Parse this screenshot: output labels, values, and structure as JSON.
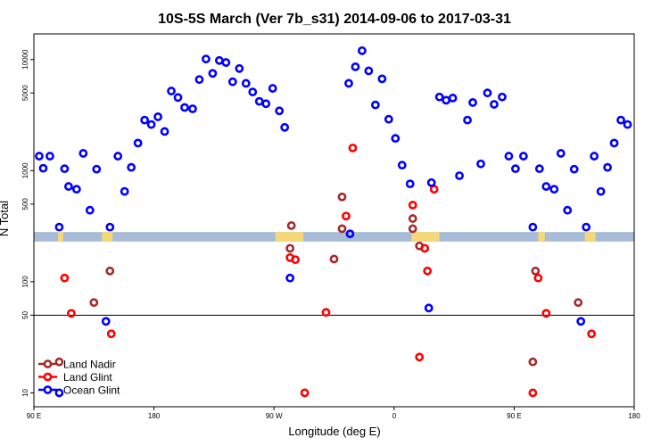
{
  "chart_data": {
    "type": "scatter",
    "title": "10S-5S March (Ver 7b_s31)   2014-09-06 to 2017-03-31",
    "xlabel": "Longitude (deg E)",
    "ylabel": "N Total",
    "x_scale": "linear",
    "y_scale": "log",
    "xlim": [
      90,
      540
    ],
    "ylim": [
      7.5,
      17000
    ],
    "x_ticks": [
      {
        "value": 90,
        "label": "90 E"
      },
      {
        "value": 180,
        "label": "180"
      },
      {
        "value": 270,
        "label": "90 W"
      },
      {
        "value": 360,
        "label": "0"
      },
      {
        "value": 450,
        "label": "90 E"
      },
      {
        "value": 540,
        "label": "180"
      }
    ],
    "y_ticks": [
      {
        "value": 10,
        "label": "10"
      },
      {
        "value": 50,
        "label": "50"
      },
      {
        "value": 100,
        "label": "100"
      },
      {
        "value": 500,
        "label": "500"
      },
      {
        "value": 1000,
        "label": "1000"
      },
      {
        "value": 5000,
        "label": "5000"
      },
      {
        "value": 10000,
        "label": "10000"
      }
    ],
    "reference_line": 50,
    "map_band": {
      "y_range": [
        230,
        280
      ],
      "ocean_color": "#a8bcd8",
      "land_color": "#f5d878"
    },
    "land_segments": [
      [
        108,
        112
      ],
      [
        141,
        149
      ],
      [
        271,
        292
      ],
      [
        373,
        394
      ],
      [
        468,
        473
      ],
      [
        503,
        511
      ]
    ],
    "legend": {
      "position": "bottom-left"
    },
    "series": [
      {
        "name": "Land Nadir",
        "color": "#a52a2a",
        "points": [
          [
            109,
            19
          ],
          [
            135,
            65
          ],
          [
            147,
            125
          ],
          [
            282,
            200
          ],
          [
            283,
            320
          ],
          [
            315,
            160
          ],
          [
            321,
            580
          ],
          [
            321,
            300
          ],
          [
            374,
            300
          ],
          [
            374,
            370
          ],
          [
            379,
            210
          ],
          [
            464,
            19
          ],
          [
            466,
            125
          ],
          [
            498,
            65
          ]
        ]
      },
      {
        "name": "Land Glint",
        "color": "#ff0000",
        "points": [
          [
            113,
            108
          ],
          [
            118,
            52
          ],
          [
            148,
            34
          ],
          [
            282,
            165
          ],
          [
            286,
            158
          ],
          [
            293,
            10
          ],
          [
            309,
            53
          ],
          [
            324,
            390
          ],
          [
            329,
            1600
          ],
          [
            374,
            490
          ],
          [
            379,
            21
          ],
          [
            383,
            200
          ],
          [
            385,
            125
          ],
          [
            390,
            680
          ],
          [
            464,
            10
          ],
          [
            468,
            108
          ],
          [
            474,
            52
          ],
          [
            508,
            34
          ]
        ]
      },
      {
        "name": "Ocean Glint",
        "color": "#0000ff",
        "points": [
          [
            94,
            1350
          ],
          [
            97,
            1050
          ],
          [
            102,
            1350
          ],
          [
            109,
            10
          ],
          [
            109,
            310
          ],
          [
            113,
            1040
          ],
          [
            116,
            720
          ],
          [
            122,
            680
          ],
          [
            127,
            1430
          ],
          [
            132,
            440
          ],
          [
            137,
            1030
          ],
          [
            144,
            44
          ],
          [
            147,
            310
          ],
          [
            153,
            1350
          ],
          [
            158,
            650
          ],
          [
            163,
            1070
          ],
          [
            168,
            1770
          ],
          [
            173,
            2850
          ],
          [
            178,
            2600
          ],
          [
            183,
            3050
          ],
          [
            188,
            2250
          ],
          [
            193,
            5200
          ],
          [
            198,
            4550
          ],
          [
            203,
            3700
          ],
          [
            209,
            3600
          ],
          [
            214,
            6600
          ],
          [
            219,
            10100
          ],
          [
            224,
            7500
          ],
          [
            229,
            9800
          ],
          [
            234,
            9400
          ],
          [
            239,
            6300
          ],
          [
            244,
            8300
          ],
          [
            249,
            6100
          ],
          [
            254,
            5100
          ],
          [
            259,
            4200
          ],
          [
            264,
            4000
          ],
          [
            269,
            5500
          ],
          [
            274,
            3450
          ],
          [
            278,
            2450
          ],
          [
            282,
            108
          ],
          [
            327,
            270
          ],
          [
            326,
            6100
          ],
          [
            331,
            8600
          ],
          [
            336,
            12000
          ],
          [
            341,
            7900
          ],
          [
            346,
            3900
          ],
          [
            351,
            6700
          ],
          [
            356,
            2900
          ],
          [
            361,
            1950
          ],
          [
            366,
            1120
          ],
          [
            372,
            760
          ],
          [
            386,
            58
          ],
          [
            388,
            780
          ],
          [
            394,
            4600
          ],
          [
            399,
            4300
          ],
          [
            404,
            4500
          ],
          [
            409,
            900
          ],
          [
            415,
            2850
          ],
          [
            419,
            4100
          ],
          [
            425,
            1150
          ],
          [
            430,
            5000
          ],
          [
            435,
            3950
          ],
          [
            441,
            4600
          ],
          [
            446,
            1350
          ],
          [
            451,
            1040
          ],
          [
            457,
            1350
          ],
          [
            464,
            310
          ],
          [
            469,
            1040
          ],
          [
            474,
            720
          ],
          [
            480,
            680
          ],
          [
            485,
            1430
          ],
          [
            490,
            440
          ],
          [
            495,
            1030
          ],
          [
            500,
            44
          ],
          [
            504,
            310
          ],
          [
            510,
            1350
          ],
          [
            515,
            650
          ],
          [
            520,
            1070
          ],
          [
            525,
            1770
          ],
          [
            530,
            2850
          ],
          [
            535,
            2600
          ]
        ]
      }
    ]
  }
}
